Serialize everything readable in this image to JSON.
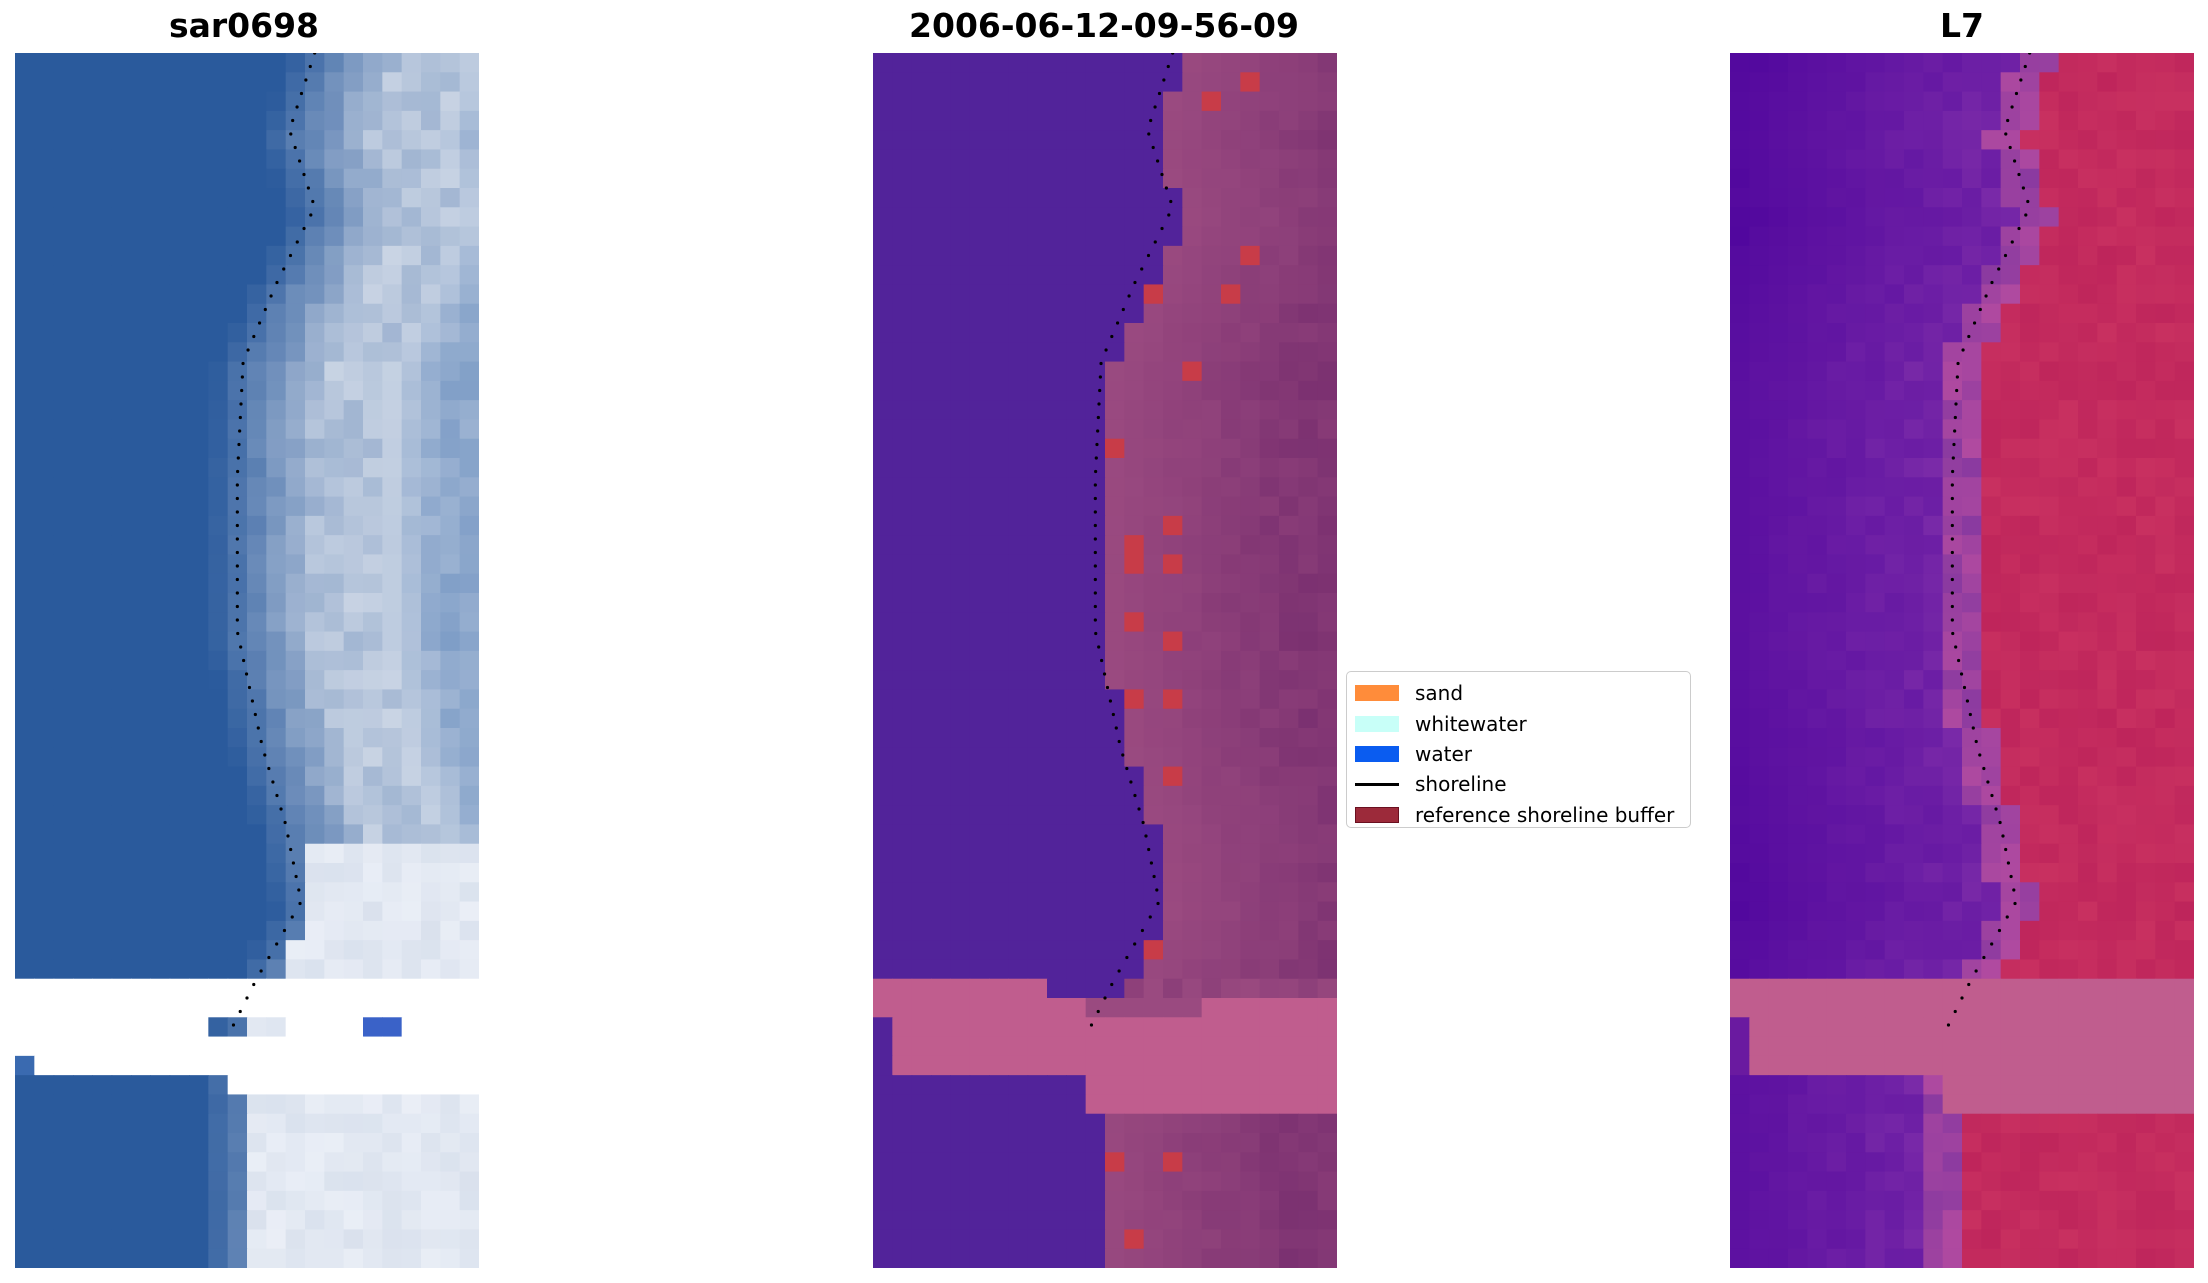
{
  "chart_data": [
    {
      "type": "heatmap",
      "title": "sar0698",
      "description_kind": "RGB satellite image tile with shoreline overlay",
      "shoreline_style": "dotted black"
    },
    {
      "type": "heatmap",
      "title": "2006-06-12-09-56-09",
      "description_kind": "classified image overlay",
      "shoreline_style": "dotted black"
    },
    {
      "type": "heatmap",
      "title": "L7",
      "description_kind": "MNDWI index image",
      "shoreline_style": "dotted black"
    }
  ],
  "legend": {
    "placement": "center",
    "items": [
      {
        "label": "sand",
        "color": "#ff8c3a",
        "kind": "patch"
      },
      {
        "label": "whitewater",
        "color": "#c8fff8",
        "kind": "patch"
      },
      {
        "label": "water",
        "color": "#0a5cf0",
        "kind": "patch"
      },
      {
        "label": "shoreline",
        "color": "#000000",
        "kind": "line"
      },
      {
        "label": "reference shoreline buffer",
        "color": "#9c2a3a",
        "kind": "patch"
      }
    ]
  },
  "colors": {
    "water_rgb": "#2d5fa0",
    "sand_rgb": "#c8d2e0",
    "class_water": "#52239a",
    "class_land": "#9a4a80",
    "class_buffer": "#c34a7c",
    "class_red": "#c83c48",
    "mndwi_water": "#5a0fa0",
    "mndwi_land": "#c83060"
  }
}
